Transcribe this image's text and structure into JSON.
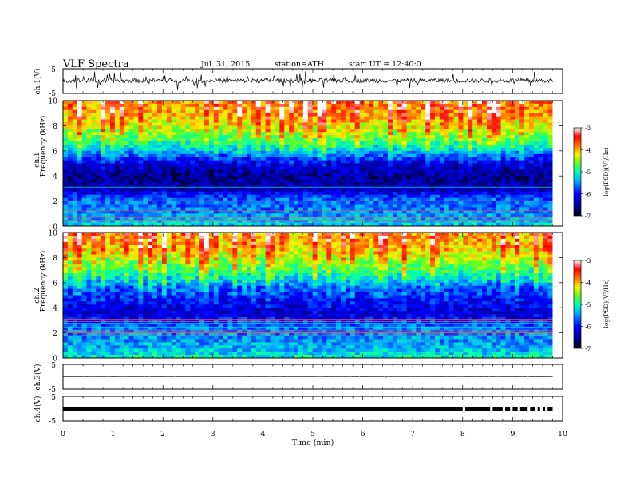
{
  "header": {
    "title": "VLF  Spectra",
    "date": "Jul.  31,  2015",
    "station": "station=ATH",
    "start": "start  UT  =    12:40:0"
  },
  "colors": {
    "frame": "#000000",
    "colormap": [
      "#000010",
      "#00008a",
      "#0000ff",
      "#00a0ff",
      "#00ffcc",
      "#40ff40",
      "#d8ff00",
      "#ffd000",
      "#ff7000",
      "#ff0000",
      "#ff9090",
      "#ffffff"
    ]
  },
  "chart_data": [
    {
      "type": "line",
      "panel": "ch1-waveform",
      "ylabel": "ch.1(V)",
      "ylim": [
        -5,
        5
      ],
      "yticks": [
        "5",
        "-5"
      ],
      "xlim": [
        0,
        10
      ],
      "baseline": 0.2,
      "noise_amplitude": 0.9,
      "spike_amplitude": 3.5,
      "color": "#000000"
    },
    {
      "type": "heatmap",
      "panel": "ch1-spectrogram",
      "ylabel": "Frequency  (kHz)",
      "channel_label": "ch.1",
      "ylim": [
        0,
        10
      ],
      "yticks": [
        "0",
        "2",
        "4",
        "6",
        "8",
        "10"
      ],
      "xlim": [
        0,
        10
      ],
      "data_end_min": 9.8,
      "colorbar": {
        "label": "log(PSD)(V²/Hz)",
        "range": [
          -7,
          -3
        ],
        "ticks": [
          "-3",
          "-4",
          "-5",
          "-6",
          "-7"
        ]
      },
      "profile_freq_khz": [
        0,
        0.5,
        1.5,
        2.2,
        3,
        4,
        5,
        6,
        7,
        8,
        9,
        10
      ],
      "profile_log_psd": [
        -5.2,
        -5.4,
        -5.6,
        -5.7,
        -6.4,
        -6.6,
        -6.3,
        -5.4,
        -4.8,
        -4.4,
        -4.1,
        -4.0
      ]
    },
    {
      "type": "heatmap",
      "panel": "ch2-spectrogram",
      "ylabel": "Frequency  (kHz)",
      "channel_label": "ch.2",
      "ylim": [
        0,
        10
      ],
      "yticks": [
        "0",
        "2",
        "4",
        "6",
        "8",
        "10"
      ],
      "xlim": [
        0,
        10
      ],
      "data_end_min": 9.8,
      "colorbar": {
        "label": "log(PSD)(V²/Hz)",
        "range": [
          -7,
          -3
        ],
        "ticks": [
          "-3",
          "-4",
          "-5",
          "-6",
          "-7"
        ]
      },
      "profile_freq_khz": [
        0,
        0.5,
        1.5,
        2.5,
        3,
        3.5,
        4.5,
        5.5,
        6.5,
        8,
        9,
        10
      ],
      "profile_log_psd": [
        -5.0,
        -5.3,
        -5.5,
        -5.6,
        -5.9,
        -6.3,
        -6.1,
        -5.8,
        -5.2,
        -4.5,
        -4.2,
        -4.1
      ]
    },
    {
      "type": "line",
      "panel": "ch3-waveform",
      "ylabel": "ch.3(V)",
      "ylim": [
        -5,
        5
      ],
      "yticks": [
        "5",
        "-5"
      ],
      "xlim": [
        0,
        10
      ],
      "baseline": 0.0,
      "noise_amplitude": 0.08,
      "spike_amplitude": 0.3,
      "color": "#000000"
    },
    {
      "type": "line",
      "panel": "ch4-waveform",
      "ylabel": "ch.4(V)",
      "ylim": [
        -5,
        5
      ],
      "yticks": [
        "5",
        "-5"
      ],
      "xlim": [
        0,
        10
      ],
      "baseline": 0.0,
      "noise_amplitude": 0.3,
      "gaps_min": [
        8.0,
        8.55,
        8.8,
        8.95,
        9.1,
        9.3,
        9.45,
        9.55,
        9.65
      ],
      "color": "#000000"
    }
  ],
  "xaxis": {
    "label": "Time  (min)",
    "ticks": [
      "0",
      "1",
      "2",
      "3",
      "4",
      "5",
      "6",
      "7",
      "8",
      "9",
      "10"
    ],
    "range": [
      0,
      10
    ]
  }
}
